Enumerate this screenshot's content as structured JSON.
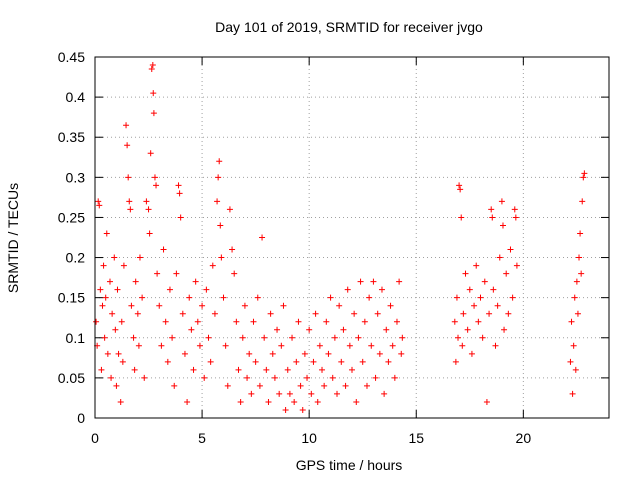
{
  "chart_data": {
    "type": "scatter",
    "title": "Day 101 of 2019, SRMTID for receiver jvgo",
    "xlabel": "GPS time / hours",
    "ylabel": "SRMTID / TECUs",
    "xlim": [
      0,
      24
    ],
    "ylim": [
      0,
      0.45
    ],
    "xticks": [
      0,
      5,
      10,
      15,
      20
    ],
    "xtick_labels": [
      "0",
      "5",
      "10",
      "15",
      "20"
    ],
    "yticks": [
      0,
      0.05,
      0.1,
      0.15,
      0.2,
      0.25,
      0.3,
      0.35,
      0.4,
      0.45
    ],
    "ytick_labels": [
      "0",
      "0.05",
      "0.1",
      "0.15",
      "0.2",
      "0.25",
      "0.3",
      "0.35",
      "0.4",
      "0.45"
    ],
    "grid": true,
    "marker": "+",
    "color": "#ff0000",
    "series": [
      {
        "name": "SRMTID",
        "points": [
          [
            0.05,
            0.12
          ],
          [
            0.1,
            0.09
          ],
          [
            0.15,
            0.27
          ],
          [
            0.2,
            0.265
          ],
          [
            0.25,
            0.16
          ],
          [
            0.3,
            0.06
          ],
          [
            0.35,
            0.14
          ],
          [
            0.4,
            0.19
          ],
          [
            0.45,
            0.1
          ],
          [
            0.5,
            0.15
          ],
          [
            0.55,
            0.23
          ],
          [
            0.6,
            0.08
          ],
          [
            0.7,
            0.17
          ],
          [
            0.75,
            0.05
          ],
          [
            0.8,
            0.13
          ],
          [
            0.9,
            0.2
          ],
          [
            0.95,
            0.11
          ],
          [
            1.0,
            0.04
          ],
          [
            1.05,
            0.16
          ],
          [
            1.1,
            0.08
          ],
          [
            1.2,
            0.02
          ],
          [
            1.25,
            0.12
          ],
          [
            1.3,
            0.07
          ],
          [
            1.35,
            0.19
          ],
          [
            1.45,
            0.365
          ],
          [
            1.5,
            0.34
          ],
          [
            1.55,
            0.3
          ],
          [
            1.6,
            0.27
          ],
          [
            1.65,
            0.26
          ],
          [
            1.7,
            0.14
          ],
          [
            1.8,
            0.1
          ],
          [
            1.85,
            0.06
          ],
          [
            1.9,
            0.17
          ],
          [
            2.0,
            0.13
          ],
          [
            2.05,
            0.09
          ],
          [
            2.1,
            0.2
          ],
          [
            2.2,
            0.15
          ],
          [
            2.3,
            0.05
          ],
          [
            2.4,
            0.27
          ],
          [
            2.5,
            0.26
          ],
          [
            2.55,
            0.23
          ],
          [
            2.6,
            0.33
          ],
          [
            2.65,
            0.435
          ],
          [
            2.7,
            0.44
          ],
          [
            2.72,
            0.405
          ],
          [
            2.75,
            0.38
          ],
          [
            2.8,
            0.3
          ],
          [
            2.85,
            0.29
          ],
          [
            2.9,
            0.18
          ],
          [
            3.0,
            0.14
          ],
          [
            3.1,
            0.09
          ],
          [
            3.2,
            0.21
          ],
          [
            3.3,
            0.12
          ],
          [
            3.4,
            0.07
          ],
          [
            3.5,
            0.16
          ],
          [
            3.6,
            0.1
          ],
          [
            3.7,
            0.04
          ],
          [
            3.8,
            0.18
          ],
          [
            3.9,
            0.29
          ],
          [
            3.95,
            0.28
          ],
          [
            4.0,
            0.25
          ],
          [
            4.1,
            0.13
          ],
          [
            4.2,
            0.08
          ],
          [
            4.3,
            0.02
          ],
          [
            4.4,
            0.15
          ],
          [
            4.5,
            0.11
          ],
          [
            4.6,
            0.06
          ],
          [
            4.7,
            0.17
          ],
          [
            4.8,
            0.12
          ],
          [
            4.9,
            0.09
          ],
          [
            5.0,
            0.14
          ],
          [
            5.1,
            0.05
          ],
          [
            5.2,
            0.16
          ],
          [
            5.3,
            0.1
          ],
          [
            5.4,
            0.07
          ],
          [
            5.5,
            0.19
          ],
          [
            5.6,
            0.13
          ],
          [
            5.7,
            0.27
          ],
          [
            5.75,
            0.3
          ],
          [
            5.8,
            0.32
          ],
          [
            5.85,
            0.24
          ],
          [
            5.9,
            0.2
          ],
          [
            6.0,
            0.15
          ],
          [
            6.1,
            0.09
          ],
          [
            6.2,
            0.04
          ],
          [
            6.3,
            0.26
          ],
          [
            6.4,
            0.21
          ],
          [
            6.5,
            0.18
          ],
          [
            6.6,
            0.12
          ],
          [
            6.7,
            0.06
          ],
          [
            6.8,
            0.02
          ],
          [
            6.9,
            0.1
          ],
          [
            7.0,
            0.14
          ],
          [
            7.1,
            0.05
          ],
          [
            7.2,
            0.08
          ],
          [
            7.3,
            0.03
          ],
          [
            7.4,
            0.12
          ],
          [
            7.5,
            0.07
          ],
          [
            7.6,
            0.15
          ],
          [
            7.7,
            0.04
          ],
          [
            7.8,
            0.225
          ],
          [
            7.9,
            0.1
          ],
          [
            8.0,
            0.06
          ],
          [
            8.1,
            0.02
          ],
          [
            8.2,
            0.13
          ],
          [
            8.3,
            0.08
          ],
          [
            8.4,
            0.05
          ],
          [
            8.5,
            0.11
          ],
          [
            8.6,
            0.03
          ],
          [
            8.7,
            0.09
          ],
          [
            8.8,
            0.14
          ],
          [
            8.9,
            0.01
          ],
          [
            9.0,
            0.06
          ],
          [
            9.1,
            0.03
          ],
          [
            9.2,
            0.1
          ],
          [
            9.3,
            0.02
          ],
          [
            9.4,
            0.07
          ],
          [
            9.5,
            0.12
          ],
          [
            9.6,
            0.04
          ],
          [
            9.7,
            0.01
          ],
          [
            9.8,
            0.08
          ],
          [
            9.9,
            0.05
          ],
          [
            10.0,
            0.11
          ],
          [
            10.1,
            0.03
          ],
          [
            10.2,
            0.07
          ],
          [
            10.3,
            0.13
          ],
          [
            10.4,
            0.02
          ],
          [
            10.5,
            0.09
          ],
          [
            10.6,
            0.06
          ],
          [
            10.7,
            0.04
          ],
          [
            10.8,
            0.12
          ],
          [
            10.9,
            0.08
          ],
          [
            11.0,
            0.15
          ],
          [
            11.1,
            0.05
          ],
          [
            11.2,
            0.1
          ],
          [
            11.3,
            0.03
          ],
          [
            11.4,
            0.14
          ],
          [
            11.5,
            0.07
          ],
          [
            11.6,
            0.11
          ],
          [
            11.7,
            0.04
          ],
          [
            11.8,
            0.16
          ],
          [
            11.9,
            0.09
          ],
          [
            12.0,
            0.06
          ],
          [
            12.1,
            0.13
          ],
          [
            12.2,
            0.02
          ],
          [
            12.3,
            0.1
          ],
          [
            12.4,
            0.17
          ],
          [
            12.5,
            0.07
          ],
          [
            12.6,
            0.12
          ],
          [
            12.7,
            0.04
          ],
          [
            12.8,
            0.15
          ],
          [
            12.9,
            0.09
          ],
          [
            13.0,
            0.17
          ],
          [
            13.1,
            0.05
          ],
          [
            13.2,
            0.13
          ],
          [
            13.3,
            0.08
          ],
          [
            13.4,
            0.16
          ],
          [
            13.5,
            0.03
          ],
          [
            13.6,
            0.11
          ],
          [
            13.7,
            0.07
          ],
          [
            13.8,
            0.14
          ],
          [
            13.9,
            0.09
          ],
          [
            14.0,
            0.05
          ],
          [
            14.1,
            0.12
          ],
          [
            14.2,
            0.17
          ],
          [
            14.3,
            0.08
          ],
          [
            14.35,
            0.1
          ],
          [
            16.8,
            0.12
          ],
          [
            16.85,
            0.07
          ],
          [
            16.9,
            0.15
          ],
          [
            16.95,
            0.1
          ],
          [
            17.0,
            0.29
          ],
          [
            17.05,
            0.285
          ],
          [
            17.1,
            0.25
          ],
          [
            17.15,
            0.09
          ],
          [
            17.2,
            0.13
          ],
          [
            17.3,
            0.18
          ],
          [
            17.4,
            0.11
          ],
          [
            17.5,
            0.16
          ],
          [
            17.6,
            0.08
          ],
          [
            17.7,
            0.14
          ],
          [
            17.8,
            0.19
          ],
          [
            17.9,
            0.12
          ],
          [
            18.0,
            0.15
          ],
          [
            18.1,
            0.1
          ],
          [
            18.2,
            0.17
          ],
          [
            18.3,
            0.02
          ],
          [
            18.4,
            0.13
          ],
          [
            18.5,
            0.26
          ],
          [
            18.55,
            0.25
          ],
          [
            18.6,
            0.16
          ],
          [
            18.7,
            0.09
          ],
          [
            18.8,
            0.14
          ],
          [
            18.9,
            0.2
          ],
          [
            19.0,
            0.27
          ],
          [
            19.05,
            0.24
          ],
          [
            19.1,
            0.11
          ],
          [
            19.2,
            0.18
          ],
          [
            19.3,
            0.13
          ],
          [
            19.4,
            0.21
          ],
          [
            19.5,
            0.15
          ],
          [
            19.6,
            0.26
          ],
          [
            19.65,
            0.25
          ],
          [
            19.7,
            0.19
          ],
          [
            22.2,
            0.07
          ],
          [
            22.25,
            0.12
          ],
          [
            22.3,
            0.03
          ],
          [
            22.35,
            0.09
          ],
          [
            22.4,
            0.15
          ],
          [
            22.45,
            0.06
          ],
          [
            22.5,
            0.17
          ],
          [
            22.55,
            0.13
          ],
          [
            22.6,
            0.2
          ],
          [
            22.65,
            0.23
          ],
          [
            22.7,
            0.18
          ],
          [
            22.75,
            0.27
          ],
          [
            22.8,
            0.3
          ],
          [
            22.85,
            0.305
          ]
        ]
      }
    ]
  }
}
